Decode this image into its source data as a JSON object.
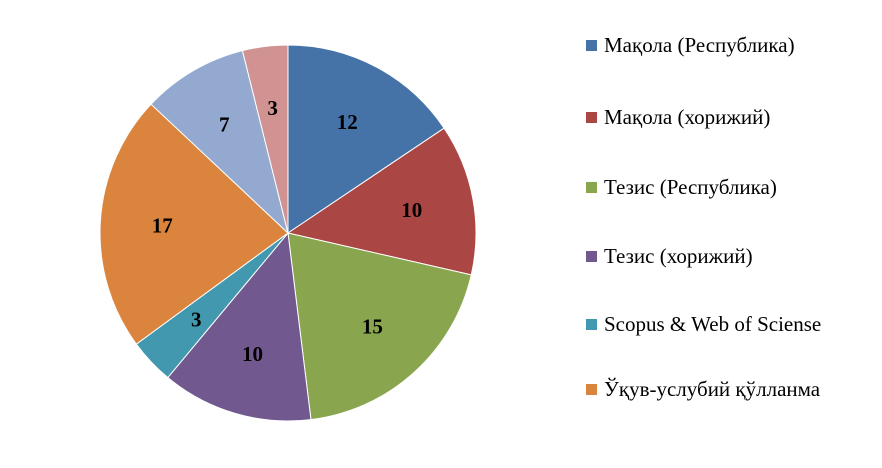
{
  "chart_data": {
    "type": "pie",
    "title": "",
    "legend_position": "right",
    "start_angle_deg": 0,
    "direction": "clockwise",
    "slices": [
      {
        "label": "Мақола (Республика)",
        "value": 12,
        "color": "#4572A7"
      },
      {
        "label": "Мақола (хорижий)",
        "value": 10,
        "color": "#AA4643"
      },
      {
        "label": "Тезис (Республика)",
        "value": 15,
        "color": "#89A54E"
      },
      {
        "label": "Тезис (хорижий)",
        "value": 10,
        "color": "#71588F"
      },
      {
        "label": "Scopus & Web of Sciense",
        "value": 3,
        "color": "#4198AF"
      },
      {
        "label": "Ўқув-услубий қўлланма",
        "value": 17,
        "color": "#DB843D"
      },
      {
        "label": "",
        "value": 7,
        "color": "#93A9CF"
      },
      {
        "label": "",
        "value": 3,
        "color": "#D19392"
      }
    ]
  },
  "legend": {
    "items": [
      {
        "label": "Мақола (Республика)",
        "color": "#4572A7"
      },
      {
        "label": "Мақола (хорижий)",
        "color": "#AA4643"
      },
      {
        "label": "Тезис (Республика)",
        "color": "#89A54E"
      },
      {
        "label": "Тезис (хорижий)",
        "color": "#71588F"
      },
      {
        "label": "Scopus & Web of Sciense",
        "color": "#4198AF"
      },
      {
        "label": "Ўқув-услубий қўлланма",
        "color": "#DB843D"
      }
    ]
  }
}
